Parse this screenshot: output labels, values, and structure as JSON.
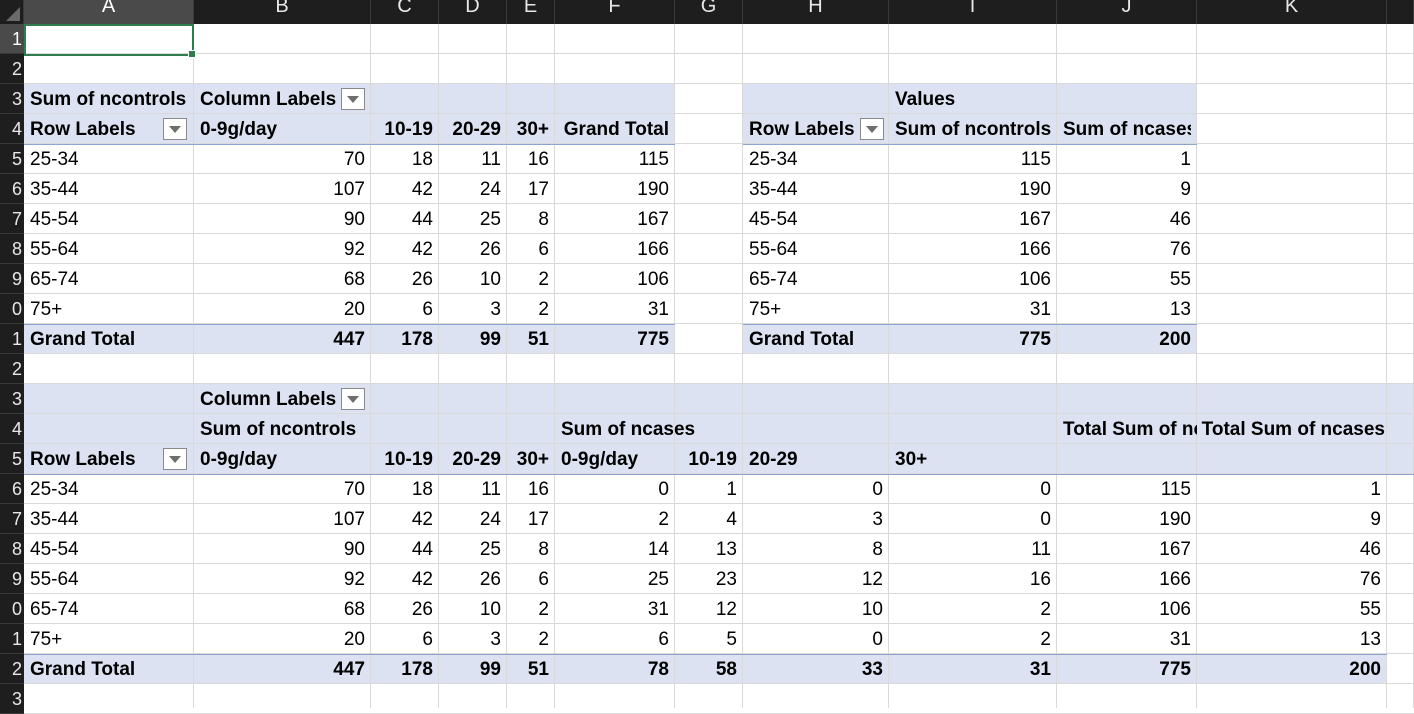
{
  "columns": [
    "A",
    "B",
    "C",
    "D",
    "E",
    "F",
    "G",
    "H",
    "I",
    "J",
    "K"
  ],
  "rows": [
    "1",
    "2",
    "3",
    "4",
    "5",
    "6",
    "7",
    "8",
    "9",
    "0",
    "1",
    "2",
    "3",
    "4",
    "5",
    "6",
    "7",
    "8",
    "9",
    "0",
    "1",
    "2",
    "3"
  ],
  "pivot1": {
    "title": "Sum of ncontrols",
    "col_labels": "Column Labels",
    "row_labels": "Row Labels",
    "headers": [
      "0-9g/day",
      "10-19",
      "20-29",
      "30+",
      "Grand Total"
    ],
    "rows": [
      [
        "25-34",
        "70",
        "18",
        "11",
        "16",
        "115"
      ],
      [
        "35-44",
        "107",
        "42",
        "24",
        "17",
        "190"
      ],
      [
        "45-54",
        "90",
        "44",
        "25",
        "8",
        "167"
      ],
      [
        "55-64",
        "92",
        "42",
        "26",
        "6",
        "166"
      ],
      [
        "65-74",
        "68",
        "26",
        "10",
        "2",
        "106"
      ],
      [
        "75+",
        "20",
        "6",
        "3",
        "2",
        "31"
      ]
    ],
    "total": [
      "Grand Total",
      "447",
      "178",
      "99",
      "51",
      "775"
    ]
  },
  "pivot2": {
    "values_label": "Values",
    "row_labels": "Row Labels",
    "headers": [
      "Sum of ncontrols",
      "Sum of ncases"
    ],
    "rows": [
      [
        "25-34",
        "115",
        "1"
      ],
      [
        "35-44",
        "190",
        "9"
      ],
      [
        "45-54",
        "167",
        "46"
      ],
      [
        "55-64",
        "166",
        "76"
      ],
      [
        "65-74",
        "106",
        "55"
      ],
      [
        "75+",
        "31",
        "13"
      ]
    ],
    "total": [
      "Grand Total",
      "775",
      "200"
    ]
  },
  "pivot3": {
    "col_labels": "Column Labels",
    "group1": "Sum of ncontrols",
    "group2": "Sum of ncases",
    "total1": "Total Sum of nc",
    "total2": "Total Sum of ncases",
    "row_labels": "Row Labels",
    "headers": [
      "0-9g/day",
      "10-19",
      "20-29",
      "30+",
      "0-9g/day",
      "10-19",
      "20-29",
      "30+"
    ],
    "rows": [
      [
        "25-34",
        "70",
        "18",
        "11",
        "16",
        "0",
        "1",
        "0",
        "0",
        "115",
        "1"
      ],
      [
        "35-44",
        "107",
        "42",
        "24",
        "17",
        "2",
        "4",
        "3",
        "0",
        "190",
        "9"
      ],
      [
        "45-54",
        "90",
        "44",
        "25",
        "8",
        "14",
        "13",
        "8",
        "11",
        "167",
        "46"
      ],
      [
        "55-64",
        "92",
        "42",
        "26",
        "6",
        "25",
        "23",
        "12",
        "16",
        "166",
        "76"
      ],
      [
        "65-74",
        "68",
        "26",
        "10",
        "2",
        "31",
        "12",
        "10",
        "2",
        "106",
        "55"
      ],
      [
        "75+",
        "20",
        "6",
        "3",
        "2",
        "6",
        "5",
        "0",
        "2",
        "31",
        "13"
      ]
    ],
    "total": [
      "Grand Total",
      "447",
      "178",
      "99",
      "51",
      "78",
      "58",
      "33",
      "31",
      "775",
      "200"
    ]
  }
}
